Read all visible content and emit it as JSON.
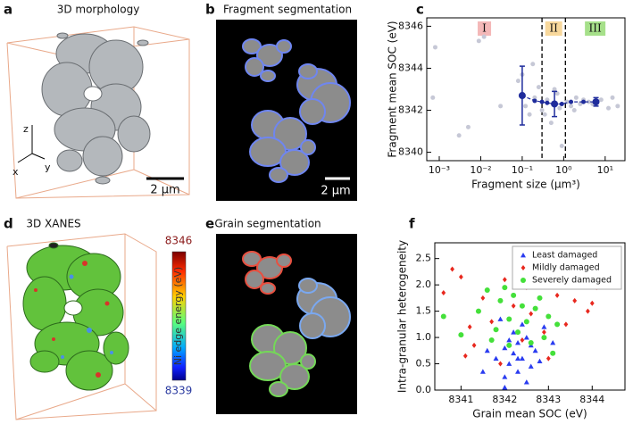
{
  "panels": {
    "a": {
      "letter": "a",
      "title": "3D morphology",
      "axes": [
        "z",
        "x",
        "y"
      ],
      "scale_bar": "2 μm"
    },
    "b": {
      "letter": "b",
      "title": "Fragment segmentation",
      "scale_bar": "2 μm"
    },
    "d": {
      "letter": "d",
      "title": "3D XANES",
      "colorbar": {
        "max": 8346,
        "min": 8339,
        "label": "Ni edge energy (eV)"
      }
    },
    "e": {
      "letter": "e",
      "title": "Grain segmentation"
    }
  },
  "chart_data": [
    {
      "type": "scatter",
      "panel_label": "c",
      "x_label": "Fragment size (μm³)",
      "y_label": "Fragment mean SOC (eV)",
      "xscale": "log",
      "xlim": [
        0.0005,
        30
      ],
      "ylim": [
        8339.6,
        8346.4
      ],
      "xticks": [
        {
          "value": 0.001,
          "label": "10⁻³"
        },
        {
          "value": 0.01,
          "label": "10⁻²"
        },
        {
          "value": 0.1,
          "label": "10⁻¹"
        },
        {
          "value": 1,
          "label": "10⁰"
        },
        {
          "value": 10,
          "label": "10¹"
        }
      ],
      "yticks": [
        8340,
        8342,
        8344,
        8346
      ],
      "vlines": [
        0.3,
        1.1
      ],
      "regions": [
        {
          "label": "I",
          "color": "#f4b8b8"
        },
        {
          "label": "II",
          "color": "#f8d89c"
        },
        {
          "label": "III",
          "color": "#a6e08a"
        }
      ],
      "series": [
        {
          "color": "#c6c8d6",
          "marker": "circle",
          "x": [
            0.0008,
            0.0007,
            0.003,
            0.005,
            0.009,
            0.012,
            0.08,
            0.1,
            0.12,
            0.15,
            0.2,
            0.03,
            0.25,
            0.3,
            0.4,
            0.5,
            0.6,
            0.8,
            0.9,
            1.2,
            1.5,
            2,
            2.5,
            3,
            4,
            5,
            8,
            12,
            15,
            20,
            0.7,
            0.18,
            0.35,
            1.8
          ],
          "values": [
            8345.0,
            8342.6,
            8340.8,
            8341.2,
            8345.3,
            8345.5,
            8343.4,
            8343.7,
            8342.2,
            8341.8,
            8342.6,
            8342.2,
            8343.1,
            8342.0,
            8342.5,
            8341.4,
            8343.0,
            8342.1,
            8340.3,
            8342.4,
            8342.2,
            8342.6,
            8342.3,
            8342.5,
            8342.4,
            8342.3,
            8342.5,
            8342.1,
            8342.6,
            8342.2,
            8342.8,
            8344.2,
            8341.8,
            8342.0
          ]
        },
        {
          "color": "#1f2c9c",
          "marker": "circle",
          "connected": true,
          "x": [
            0.1,
            0.2,
            0.3,
            0.4,
            0.6,
            0.9,
            1.5,
            3,
            6
          ],
          "values": [
            8342.7,
            8342.45,
            8342.4,
            8342.35,
            8342.3,
            8342.3,
            8342.4,
            8342.4,
            8342.4
          ],
          "errors": [
            1.4,
            null,
            null,
            null,
            0.6,
            null,
            null,
            null,
            0.2
          ]
        }
      ]
    },
    {
      "type": "scatter",
      "panel_label": "f",
      "x_label": "Grain mean SOC (eV)",
      "y_label": "Intra-granular heterogeneity",
      "xlim": [
        8340.4,
        8344.75
      ],
      "ylim": [
        0,
        2.8
      ],
      "xticks": [
        8341,
        8342,
        8343,
        8344
      ],
      "yticks": [
        {
          "value": 0,
          "label": "0.0"
        },
        {
          "value": 0.5,
          "label": "0.5"
        },
        {
          "value": 1,
          "label": "1.0"
        },
        {
          "value": 1.5,
          "label": "1.5"
        },
        {
          "value": 2,
          "label": "2.0"
        },
        {
          "value": 2.5,
          "label": "2.5"
        }
      ],
      "legend": "upper right",
      "series": [
        {
          "name": "Least damaged",
          "color": "#2a3cf0",
          "marker": "triangle",
          "x": [
            8341.5,
            8341.8,
            8342.0,
            8342.1,
            8342.2,
            8342.3,
            8342.4,
            8342.5,
            8342.6,
            8342.2,
            8342.0,
            8342.7,
            8342.9,
            8342.3,
            8342.1,
            8341.9,
            8342.5,
            8342.8,
            8343.1,
            8342.4,
            8342.6,
            8342.0,
            8341.6,
            8342.3
          ],
          "values": [
            0.35,
            0.6,
            0.8,
            0.5,
            0.7,
            0.9,
            0.6,
            1.0,
            0.45,
            1.1,
            0.25,
            0.75,
            1.2,
            0.35,
            0.95,
            1.35,
            0.15,
            0.55,
            0.9,
            1.25,
            0.85,
            0.05,
            0.75,
            0.6
          ]
        },
        {
          "name": "Mildly damaged",
          "color": "#e8281e",
          "marker": "diamond",
          "x": [
            8340.6,
            8340.8,
            8341.0,
            8341.2,
            8341.1,
            8341.3,
            8341.5,
            8341.7,
            8342.0,
            8342.2,
            8342.3,
            8342.5,
            8342.6,
            8342.8,
            8342.9,
            8343.2,
            8343.4,
            8343.6,
            8343.9,
            8344.0,
            8344.1,
            8343.5,
            8342.4,
            8343.0,
            8341.9
          ],
          "values": [
            1.85,
            2.3,
            2.15,
            1.2,
            0.65,
            0.85,
            1.75,
            1.3,
            2.1,
            1.6,
            2.5,
            1.95,
            1.45,
            2.15,
            1.1,
            1.8,
            1.25,
            1.7,
            1.5,
            1.65,
            1.95,
            2.05,
            0.95,
            0.6,
            0.5
          ]
        },
        {
          "name": "Severely damaged",
          "color": "#44e03a",
          "marker": "circle",
          "x": [
            8340.6,
            8341.0,
            8341.4,
            8341.6,
            8341.8,
            8341.9,
            8342.0,
            8342.1,
            8342.2,
            8342.3,
            8342.4,
            8342.5,
            8342.6,
            8342.7,
            8342.8,
            8342.9,
            8343.0,
            8343.1,
            8343.2,
            8342.1,
            8341.7,
            8342.6
          ],
          "values": [
            1.4,
            1.05,
            1.5,
            1.9,
            1.15,
            1.7,
            1.95,
            1.35,
            1.8,
            1.1,
            1.6,
            1.3,
            0.9,
            1.55,
            1.75,
            1.0,
            1.4,
            0.7,
            1.25,
            0.85,
            0.95,
            2.0
          ]
        }
      ]
    }
  ]
}
